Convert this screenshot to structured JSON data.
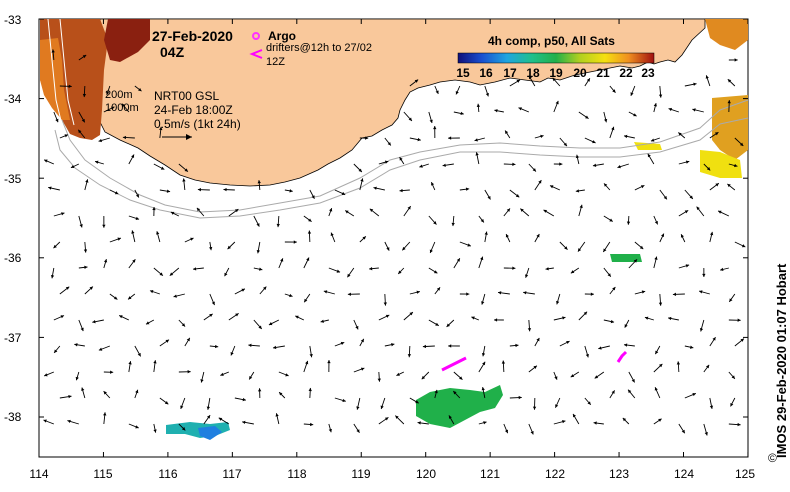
{
  "title": {
    "date": "27-Feb-2020",
    "hour": "04Z"
  },
  "legend": {
    "argo_label": "Argo",
    "drifter_label": "drifters@12h to 27/02 12Z",
    "argo_color": "#ff33ff",
    "drifter_color": "#ff00ff"
  },
  "contours": {
    "label_200": "200m",
    "label_1000": "1000m"
  },
  "source": {
    "line1": "NRT00 GSL",
    "line2": "24-Feb 18:00Z",
    "scale_label": "0.5m/s (1kt 24h)"
  },
  "colorbar": {
    "title": "4h comp, p50, All Sats",
    "ticks": [
      "15",
      "16",
      "17",
      "18",
      "19",
      "20",
      "21",
      "22",
      "23"
    ]
  },
  "axes": {
    "x_labels": [
      "114",
      "115",
      "116",
      "117",
      "118",
      "119",
      "120",
      "121",
      "122",
      "123",
      "124",
      "125"
    ],
    "y_labels": [
      "-33",
      "-34",
      "-35",
      "-36",
      "-37",
      "-38"
    ],
    "xlim": [
      114,
      125
    ],
    "ylim": [
      -38.5,
      -33
    ]
  },
  "credit": "IMOS 29-Feb-2020 01:07 Hobart",
  "credit_symbol": "©",
  "colors": {
    "land": "#f9c89b",
    "argo": "#ff33ff",
    "drifter": "#ff00ff"
  }
}
